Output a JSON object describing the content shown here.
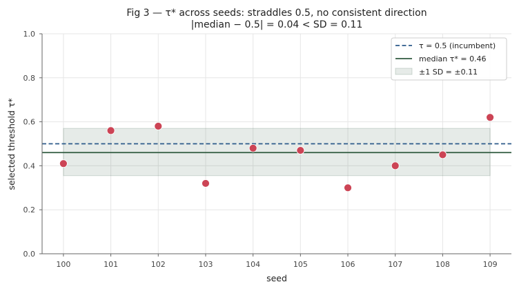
{
  "chart_data": {
    "type": "scatter",
    "title": "Fig 3 — τ* across seeds: straddles 0.5, no consistent direction",
    "subtitle": "|median − 0.5| = 0.04  <  SD = 0.11",
    "xlabel": "seed",
    "ylabel": "selected threshold τ*",
    "xlim": [
      99.55,
      109.45
    ],
    "ylim": [
      0.0,
      1.0
    ],
    "x_ticks": [
      "100",
      "101",
      "102",
      "103",
      "104",
      "105",
      "106",
      "107",
      "108",
      "109"
    ],
    "y_ticks": [
      "0.0",
      "0.2",
      "0.4",
      "0.6",
      "0.8",
      "1.0"
    ],
    "grid": true,
    "legend_position": "top-right",
    "points": {
      "x": [
        100,
        101,
        102,
        103,
        104,
        105,
        106,
        107,
        108,
        109
      ],
      "y": [
        0.41,
        0.56,
        0.58,
        0.32,
        0.48,
        0.47,
        0.3,
        0.4,
        0.45,
        0.62
      ],
      "color": "#cc4455"
    },
    "reference_line": {
      "label": "τ = 0.5 (incumbent)",
      "y": 0.5,
      "color": "#2b5a8a"
    },
    "median_line": {
      "label": "median τ* = 0.46",
      "y": 0.46,
      "color": "#2f5a3f"
    },
    "sd_band": {
      "label": "±1 SD = ±0.11",
      "y_low": 0.355,
      "y_high": 0.57,
      "x_start": 100,
      "x_end": 109,
      "color": "#2f5a3f"
    }
  }
}
